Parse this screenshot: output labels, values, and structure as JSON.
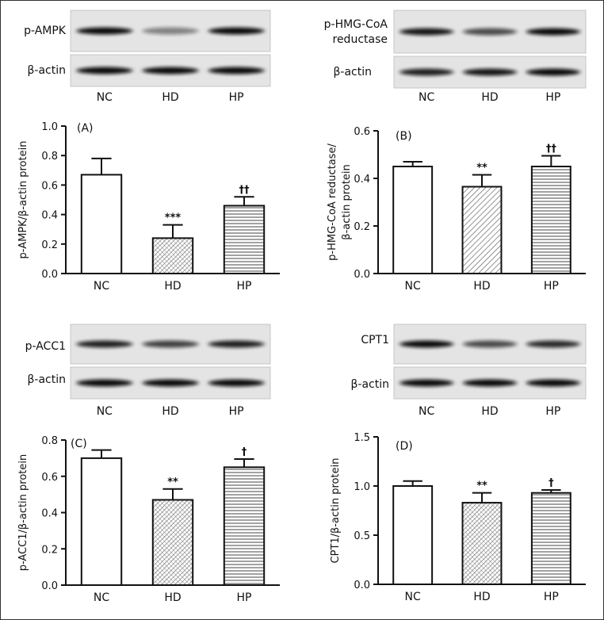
{
  "chart_data": [
    {
      "type": "bar",
      "panel": "(A)",
      "blot_labels": [
        "p-AMPK",
        "β-actin"
      ],
      "categories": [
        "NC",
        "HD",
        "HP"
      ],
      "values": [
        0.67,
        0.24,
        0.46
      ],
      "errors": [
        0.11,
        0.09,
        0.06
      ],
      "significance": [
        "",
        "***",
        "††"
      ],
      "ylabel": "p-AMPK/β-actin protein",
      "ylim": [
        0,
        1.0
      ],
      "yticks": [
        "0.0",
        "0.2",
        "0.4",
        "0.6",
        "0.8",
        "1.0"
      ],
      "patterns": [
        "none",
        "crosshatch",
        "horizontal"
      ]
    },
    {
      "type": "bar",
      "panel": "(B)",
      "blot_labels": [
        "p-HMG-CoA",
        "reductase",
        "β-actin"
      ],
      "categories": [
        "NC",
        "HD",
        "HP"
      ],
      "values": [
        0.45,
        0.365,
        0.45
      ],
      "errors": [
        0.02,
        0.05,
        0.045
      ],
      "significance": [
        "",
        "**",
        "††"
      ],
      "ylabel": "p-HMG-CoA reductase/ β-actin protein",
      "ylim": [
        0,
        0.6
      ],
      "yticks": [
        "0.0",
        "0.2",
        "0.4",
        "0.6"
      ],
      "patterns": [
        "none",
        "diagonal",
        "horizontal"
      ]
    },
    {
      "type": "bar",
      "panel": "(C)",
      "blot_labels": [
        "p-ACC1",
        "β-actin"
      ],
      "categories": [
        "NC",
        "HD",
        "HP"
      ],
      "values": [
        0.7,
        0.47,
        0.65
      ],
      "errors": [
        0.045,
        0.06,
        0.045
      ],
      "significance": [
        "",
        "**",
        "†"
      ],
      "ylabel": "p-ACC1/β-actin protein",
      "ylim": [
        0,
        0.8
      ],
      "yticks": [
        "0.0",
        "0.2",
        "0.4",
        "0.6",
        "0.8"
      ],
      "patterns": [
        "none",
        "crosshatch",
        "horizontal"
      ]
    },
    {
      "type": "bar",
      "panel": "(D)",
      "blot_labels": [
        "CPT1",
        "β-actin"
      ],
      "categories": [
        "NC",
        "HD",
        "HP"
      ],
      "values": [
        1.0,
        0.83,
        0.93
      ],
      "errors": [
        0.05,
        0.1,
        0.03
      ],
      "significance": [
        "",
        "**",
        "†"
      ],
      "ylabel": "CPT1/β-actin protein",
      "ylim": [
        0,
        1.5
      ],
      "yticks": [
        "0.0",
        "0.5",
        "1.0",
        "1.5"
      ],
      "patterns": [
        "none",
        "crosshatch",
        "horizontal"
      ]
    }
  ]
}
